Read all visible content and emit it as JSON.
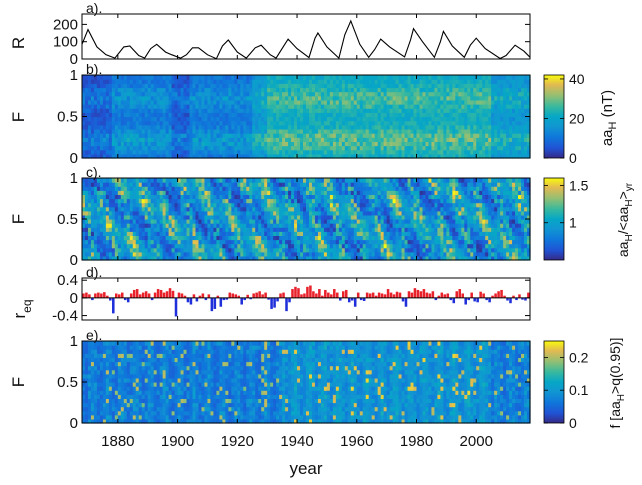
{
  "chart_data": [
    {
      "panel_label": "a).",
      "type": "line",
      "ylabel": "R",
      "xlim": [
        1868,
        2018
      ],
      "ylim": [
        0,
        260
      ],
      "yticks": [
        0,
        100,
        200
      ],
      "series": [
        {
          "x": [
            1868,
            1870,
            1873,
            1876,
            1879,
            1882,
            1884,
            1887,
            1889,
            1891,
            1893,
            1896,
            1898,
            1901,
            1903,
            1905,
            1907,
            1910,
            1913,
            1915,
            1917,
            1920,
            1923,
            1926,
            1928,
            1931,
            1933,
            1935,
            1937,
            1940,
            1944,
            1946,
            1947,
            1950,
            1954,
            1956,
            1958,
            1961,
            1964,
            1966,
            1968,
            1971,
            1976,
            1978,
            1979,
            1982,
            1986,
            1988,
            1989,
            1992,
            1996,
            1998,
            2000,
            2003,
            2008,
            2010,
            2013,
            2016,
            2018
          ],
          "y": [
            85,
            170,
            70,
            25,
            5,
            70,
            75,
            20,
            5,
            60,
            85,
            40,
            25,
            5,
            25,
            65,
            65,
            25,
            2,
            75,
            110,
            40,
            5,
            65,
            80,
            25,
            5,
            60,
            115,
            60,
            8,
            120,
            150,
            70,
            5,
            140,
            220,
            85,
            10,
            55,
            115,
            70,
            12,
            110,
            175,
            100,
            10,
            100,
            160,
            75,
            10,
            80,
            120,
            60,
            3,
            20,
            80,
            45,
            10
          ]
        }
      ]
    },
    {
      "panel_label": "b).",
      "type": "heatmap",
      "ylabel": "F",
      "xlim": [
        1868,
        2018
      ],
      "ylim": [
        0,
        1
      ],
      "yticks": [
        0,
        0.5,
        1
      ],
      "colorbar": {
        "label": "aa_H (nT)",
        "ticks": [
          0,
          20,
          40
        ],
        "range": [
          0,
          42
        ]
      }
    },
    {
      "panel_label": "c).",
      "type": "heatmap",
      "ylabel": "F",
      "xlim": [
        1868,
        2018
      ],
      "ylim": [
        0,
        1
      ],
      "yticks": [
        0,
        0.5,
        1
      ],
      "colorbar": {
        "label": "aa_H/<aa_H>_yr",
        "ticks": [
          1,
          1.5
        ],
        "range": [
          0.5,
          1.6
        ]
      }
    },
    {
      "panel_label": "d).",
      "type": "bar",
      "ylabel": "r_eq",
      "xlim": [
        1868,
        2018
      ],
      "ylim": [
        -0.5,
        0.45
      ],
      "yticks": [
        -0.4,
        0,
        0.4
      ],
      "x": [
        1868,
        1869,
        1870,
        1871,
        1872,
        1873,
        1874,
        1875,
        1876,
        1877,
        1878,
        1879,
        1880,
        1881,
        1882,
        1883,
        1884,
        1885,
        1886,
        1887,
        1888,
        1889,
        1890,
        1891,
        1892,
        1893,
        1894,
        1895,
        1896,
        1897,
        1898,
        1899,
        1900,
        1901,
        1902,
        1903,
        1904,
        1905,
        1906,
        1907,
        1908,
        1909,
        1910,
        1911,
        1912,
        1913,
        1914,
        1915,
        1916,
        1917,
        1918,
        1919,
        1920,
        1921,
        1922,
        1923,
        1924,
        1925,
        1926,
        1927,
        1928,
        1929,
        1930,
        1931,
        1932,
        1933,
        1934,
        1935,
        1936,
        1937,
        1938,
        1939,
        1940,
        1941,
        1942,
        1943,
        1944,
        1945,
        1946,
        1947,
        1948,
        1949,
        1950,
        1951,
        1952,
        1953,
        1954,
        1955,
        1956,
        1957,
        1958,
        1959,
        1960,
        1961,
        1962,
        1963,
        1964,
        1965,
        1966,
        1967,
        1968,
        1969,
        1970,
        1971,
        1972,
        1973,
        1974,
        1975,
        1976,
        1977,
        1978,
        1979,
        1980,
        1981,
        1982,
        1983,
        1984,
        1985,
        1986,
        1987,
        1988,
        1989,
        1990,
        1991,
        1992,
        1993,
        1994,
        1995,
        1996,
        1997,
        1998,
        1999,
        2000,
        2001,
        2002,
        2003,
        2004,
        2005,
        2006,
        2007,
        2008,
        2009,
        2010,
        2011,
        2012,
        2013,
        2014,
        2015,
        2016,
        2017
      ],
      "values": [
        0.1,
        0.12,
        0.08,
        -0.05,
        0.1,
        0.12,
        0.1,
        0.13,
        0.05,
        -0.06,
        -0.35,
        0.1,
        0.08,
        0.12,
        -0.05,
        -0.1,
        0.1,
        0.18,
        0.2,
        0.08,
        0.12,
        0.15,
        0.1,
        -0.05,
        0.12,
        0.2,
        0.18,
        0.12,
        0.15,
        0.22,
        0.16,
        -0.42,
        0.12,
        0.1,
        0.05,
        -0.1,
        -0.15,
        0.08,
        -0.08,
        0.05,
        0.1,
        -0.05,
        0.08,
        -0.3,
        -0.25,
        0.05,
        -0.2,
        -0.05,
        -0.04,
        0.12,
        0.1,
        0.08,
        0.05,
        -0.15,
        -0.05,
        0.07,
        -0.03,
        0.1,
        0.12,
        0.15,
        0.08,
        0.12,
        -0.04,
        -0.25,
        -0.22,
        -0.08,
        0.1,
        0.12,
        -0.3,
        -0.1,
        0.2,
        0.25,
        0.22,
        0.08,
        0.1,
        0.25,
        0.28,
        0.15,
        0.1,
        0.2,
        0.05,
        0.18,
        0.12,
        0.08,
        0.2,
        0.12,
        -0.06,
        0.15,
        0.18,
        -0.1,
        -0.06,
        -0.2,
        0.12,
        -0.05,
        -0.07,
        0.12,
        0.1,
        0.12,
        0.05,
        0.12,
        0.1,
        0.08,
        0.2,
        0.12,
        0.08,
        0.14,
        0.12,
        -0.08,
        -0.2,
        0.15,
        0.12,
        0.22,
        0.18,
        0.15,
        0.2,
        0.12,
        0.1,
        0.15,
        -0.05,
        0.05,
        0.12,
        0.08,
        0.1,
        -0.05,
        -0.12,
        0.15,
        0.2,
        0.1,
        -0.15,
        -0.05,
        0.12,
        -0.08,
        -0.1,
        0.14,
        0.1,
        -0.05,
        -0.1,
        0.05,
        0.1,
        0.15,
        0.18,
        0.05,
        -0.06,
        -0.12,
        0.05,
        -0.05,
        0.08,
        -0.04,
        -0.06,
        0.12
      ],
      "colors": {
        "positive": "#e8212a",
        "negative": "#1f2fd9"
      }
    },
    {
      "panel_label": "e).",
      "type": "heatmap",
      "ylabel": "F",
      "xlim": [
        1868,
        2018
      ],
      "ylim": [
        0,
        1
      ],
      "yticks": [
        0,
        0.5,
        1
      ],
      "colorbar": {
        "label": "f [aa_H>q(0.95)]",
        "ticks": [
          0,
          0.1,
          0.2
        ],
        "range": [
          0,
          0.25
        ]
      }
    }
  ],
  "xaxis": {
    "label": "year",
    "ticks": [
      1880,
      1900,
      1920,
      1940,
      1960,
      1980,
      2000
    ]
  },
  "text": {
    "a_label": "a).",
    "b_label": "b).",
    "c_label": "c).",
    "d_label": "d).",
    "e_label": "e).",
    "ylabel_R": "R",
    "ylabel_F": "F",
    "ylabel_r": "r",
    "ylabel_r_sub": "eq",
    "xlabel": "year"
  }
}
